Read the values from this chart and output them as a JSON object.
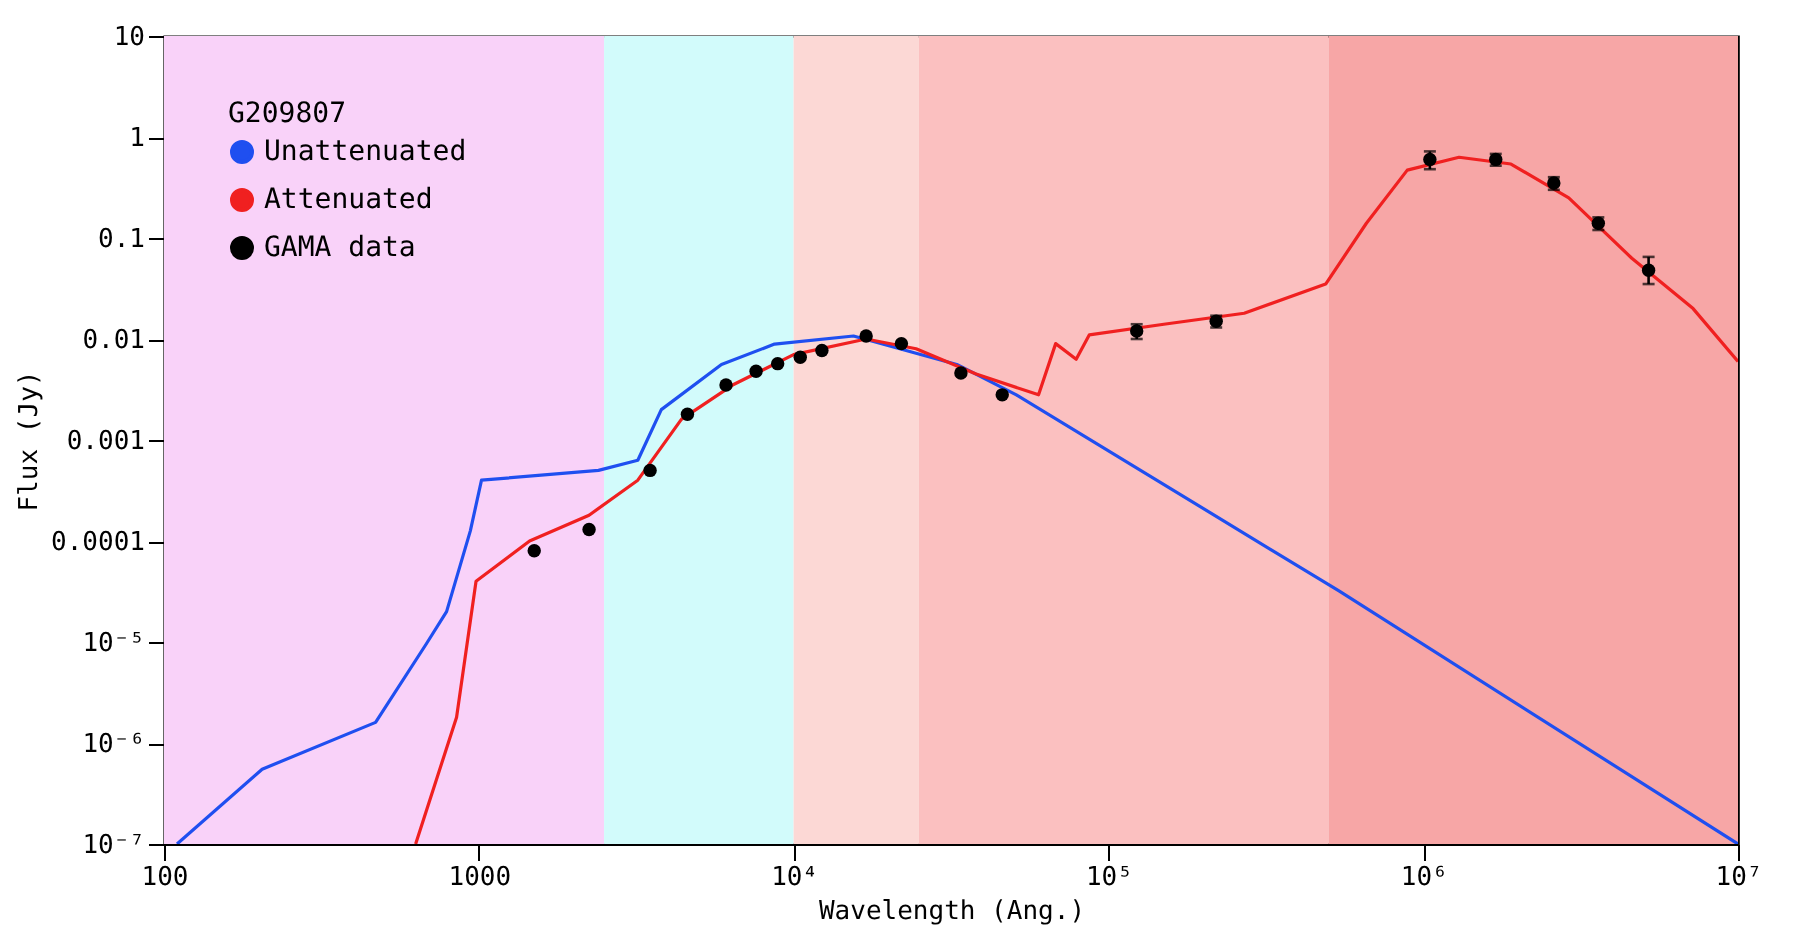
{
  "chart_data": {
    "type": "line",
    "xlabel": "Wavelength (Ang.)",
    "ylabel": "Flux (Jy)",
    "legend_title": "G209807",
    "log": "xy",
    "grid": false,
    "legend": "top left",
    "xlim": [
      100,
      10000000
    ],
    "ylim": [
      1e-07,
      10
    ],
    "xticks": [
      100,
      1000,
      {
        "value": 10000,
        "label": "10⁴"
      },
      {
        "value": 100000,
        "label": "10⁵"
      },
      {
        "value": 1000000,
        "label": "10⁶"
      },
      {
        "value": 10000000,
        "label": "10⁷"
      }
    ],
    "yticks": [
      {
        "value": 1e-07,
        "label": "10⁻⁷"
      },
      {
        "value": 1e-06,
        "label": "10⁻⁶"
      },
      {
        "value": 1e-05,
        "label": "10⁻⁵"
      },
      0.0001,
      0.001,
      0.01,
      0.1,
      1,
      10
    ],
    "bands": [
      {
        "axis": "x",
        "from": 100,
        "to": 2500,
        "color": "#f9d2f9"
      },
      {
        "axis": "x",
        "from": 2500,
        "to": 10000,
        "color": "#d2fbfb"
      },
      {
        "axis": "x",
        "from": 10000,
        "to": 25000,
        "color": "#fcd8d5"
      },
      {
        "axis": "x",
        "from": 25000,
        "to": 500000,
        "color": "#fbc0c0"
      },
      {
        "axis": "x",
        "from": 500000,
        "to": 10000000,
        "color": "#f7a6a6"
      }
    ],
    "series": [
      {
        "name": "Unattenuated",
        "color": "#1f4ff0",
        "x": [
          110,
          205,
          470,
          680,
          790,
          940,
          1020,
          2400,
          3200,
          3800,
          5900,
          8700,
          15500,
          33000,
          51000,
          540000,
          10000000
        ],
        "values": [
          1e-07,
          5.5e-07,
          1.6e-06,
          9.5e-06,
          2e-05,
          0.000126,
          0.0004,
          0.0005,
          0.00063,
          0.002,
          0.0056,
          0.0089,
          0.0107,
          0.0056,
          0.0028,
          3.2e-05,
          1e-07
        ]
      },
      {
        "name": "Attenuated",
        "color": "#f02020",
        "x": [
          630,
          850,
          980,
          1450,
          2240,
          3200,
          4400,
          6400,
          10000,
          17000,
          24500,
          38000,
          60000,
          68000,
          79000,
          87000,
          150000,
          270000,
          490000,
          660000,
          890000,
          1300000,
          1900000,
          2900000,
          4600000,
          7200000,
          10000000
        ],
        "values": [
          1e-07,
          1.8e-06,
          4e-05,
          0.0001,
          0.00018,
          0.0004,
          0.0016,
          0.0035,
          0.007,
          0.01,
          0.008,
          0.0045,
          0.0028,
          0.009,
          0.0063,
          0.011,
          0.014,
          0.018,
          0.035,
          0.14,
          0.47,
          0.63,
          0.54,
          0.25,
          0.063,
          0.02,
          0.006
        ]
      },
      {
        "name": "GAMA data",
        "type": "scatter",
        "color": "#000000",
        "marker": "circle",
        "x": [
          1500,
          2240,
          3500,
          4600,
          6100,
          7600,
          8900,
          10500,
          12300,
          17000,
          22000,
          34000,
          46000,
          123000,
          220000,
          1050000,
          1700000,
          2600000,
          3600000,
          5200000
        ],
        "values": [
          8e-05,
          0.00013,
          0.0005,
          0.0018,
          0.0035,
          0.0048,
          0.0057,
          0.0066,
          0.0077,
          0.0107,
          0.009,
          0.0046,
          0.0028,
          0.012,
          0.015,
          0.6,
          0.6,
          0.35,
          0.14,
          0.048
        ],
        "errors": [
          null,
          null,
          null,
          null,
          null,
          null,
          null,
          null,
          null,
          null,
          null,
          null,
          null,
          [
            0.01,
            0.014
          ],
          [
            0.013,
            0.017
          ],
          [
            0.48,
            0.72
          ],
          [
            0.52,
            0.68
          ],
          [
            0.3,
            0.4
          ],
          [
            0.12,
            0.16
          ],
          [
            0.035,
            0.065
          ]
        ]
      }
    ]
  }
}
